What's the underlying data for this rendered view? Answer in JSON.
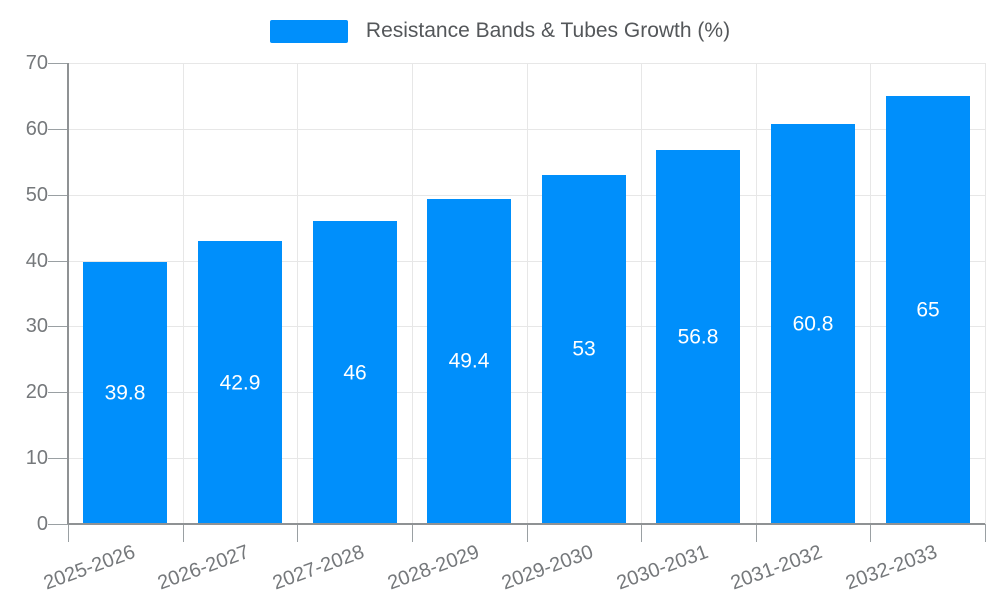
{
  "legend": {
    "label": "Resistance Bands & Tubes Growth (%)",
    "marker_color": "#008FFB"
  },
  "chart_data": {
    "type": "bar",
    "title": "Resistance Bands & Tubes Growth (%)",
    "categories": [
      "2025-2026",
      "2026-2027",
      "2027-2028",
      "2028-2029",
      "2029-2030",
      "2030-2031",
      "2031-2032",
      "2032-2033"
    ],
    "values": [
      39.8,
      42.9,
      46,
      49.4,
      53,
      56.8,
      60.8,
      65
    ],
    "series": [
      {
        "name": "Resistance Bands & Tubes Growth (%)",
        "values": [
          39.8,
          42.9,
          46,
          49.4,
          53,
          56.8,
          60.8,
          65
        ]
      }
    ],
    "xlabel": "",
    "ylabel": "",
    "ylim": [
      0,
      70
    ],
    "yticks": [
      0,
      10,
      20,
      30,
      40,
      50,
      60,
      70
    ],
    "grid": true,
    "legend_position": "top",
    "x_label_rotation_deg": -20,
    "bar_color": "#008FFB",
    "value_label_color": "#ffffff"
  },
  "colors": {
    "bar": "#008FFB",
    "grid_line": "#e7e7e7",
    "axis_line": "#8f9294",
    "tick": "#9aa0a3",
    "axis_label_text": "#75787b",
    "legend_text": "#54575a",
    "background": "#ffffff"
  }
}
